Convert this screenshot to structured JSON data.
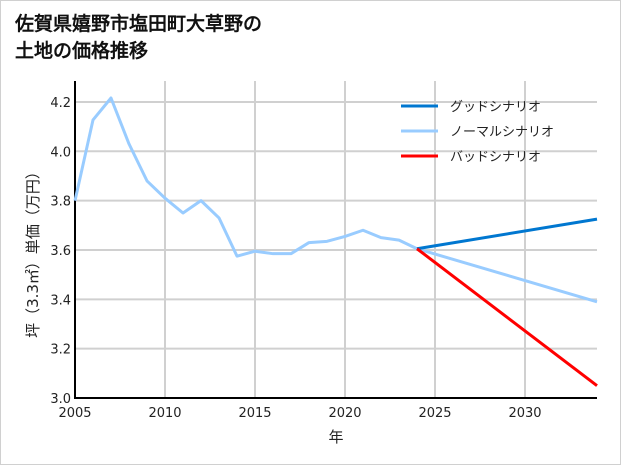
{
  "chart_data": {
    "type": "line",
    "title": "佐賀県嬉野市塩田町大草野の\n土地の価格推移",
    "xlabel": "年",
    "ylabel": "坪（3.3㎡）単価（万円）",
    "xlim": [
      2005,
      2034
    ],
    "ylim": [
      3.0,
      4.25
    ],
    "xticks": [
      2005,
      2010,
      2015,
      2020,
      2025,
      2030
    ],
    "yticks": [
      3.0,
      3.2,
      3.4,
      3.6,
      3.8,
      4.0,
      4.2
    ],
    "ytick_labels": [
      "3.0",
      "3.2",
      "3.4",
      "3.6",
      "3.8",
      "4.0",
      "4.2"
    ],
    "grid": true,
    "legend_position": "top-right",
    "series": [
      {
        "name": "グッドシナリオ",
        "color": "#0077d0",
        "x": [
          2024,
          2034
        ],
        "y": [
          3.605,
          3.725
        ]
      },
      {
        "name": "ノーマルシナリオ",
        "color": "#99ccff",
        "x": [
          2005,
          2006,
          2007,
          2008,
          2009,
          2010,
          2011,
          2012,
          2013,
          2014,
          2015,
          2016,
          2017,
          2018,
          2019,
          2020,
          2021,
          2022,
          2023,
          2024,
          2034
        ],
        "y": [
          3.8,
          4.127,
          4.216,
          4.03,
          3.88,
          3.81,
          3.75,
          3.8,
          3.73,
          3.575,
          3.595,
          3.585,
          3.585,
          3.63,
          3.635,
          3.655,
          3.68,
          3.65,
          3.64,
          3.605,
          3.39
        ]
      },
      {
        "name": "バッドシナリオ",
        "color": "#ff0000",
        "x": [
          2024,
          2034
        ],
        "y": [
          3.605,
          3.05
        ]
      }
    ]
  }
}
